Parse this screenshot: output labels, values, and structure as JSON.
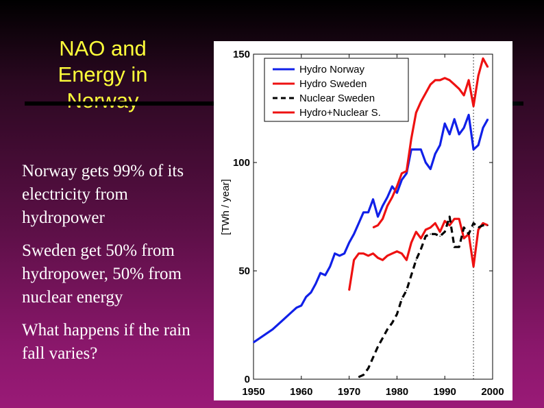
{
  "slide": {
    "title_lines": [
      "NAO and",
      "Energy in",
      "Norway"
    ],
    "bullets": [
      "Norway gets 99% of its electricity from hydropower",
      "Sweden get 50% from hydropower, 50% from nuclear energy",
      "What happens if the rain fall varies?"
    ]
  },
  "chart_data": {
    "type": "line",
    "title": "",
    "xlabel": "",
    "ylabel": "[TWh / year]",
    "xlim": [
      1950,
      2000
    ],
    "ylim": [
      0,
      150
    ],
    "xticks": [
      "1950",
      "1960",
      "1970",
      "1980",
      "1990",
      "2000"
    ],
    "yticks": [
      "0",
      "50",
      "100",
      "150"
    ],
    "reference_line_x": 1996,
    "legend_position": "top-right",
    "colors": {
      "blue": "#1020e8",
      "red": "#ee1111",
      "black": "#000000"
    },
    "series": [
      {
        "name": "Hydro Norway",
        "color": "#1020e8",
        "dash": "solid",
        "x": [
          1950,
          1952,
          1954,
          1956,
          1958,
          1959,
          1960,
          1961,
          1962,
          1963,
          1964,
          1965,
          1966,
          1967,
          1968,
          1969,
          1970,
          1971,
          1972,
          1973,
          1974,
          1975,
          1976,
          1977,
          1978,
          1979,
          1980,
          1981,
          1982,
          1983,
          1984,
          1985,
          1986,
          1987,
          1988,
          1989,
          1990,
          1991,
          1992,
          1993,
          1994,
          1995,
          1996,
          1997,
          1998,
          1999
        ],
        "y": [
          17,
          20,
          23,
          27,
          31,
          33,
          34,
          38,
          40,
          44,
          49,
          48,
          52,
          58,
          57,
          58,
          63,
          67,
          72,
          77,
          77,
          83,
          75,
          80,
          84,
          89,
          86,
          92,
          95,
          106,
          106,
          106,
          100,
          97,
          104,
          108,
          118,
          113,
          120,
          113,
          116,
          122,
          106,
          108,
          116,
          120
        ]
      },
      {
        "name": "Hydro Sweden",
        "color": "#ee1111",
        "dash": "solid",
        "x": [
          1970,
          1971,
          1972,
          1973,
          1974,
          1975,
          1976,
          1977,
          1978,
          1979,
          1980,
          1981,
          1982,
          1983,
          1984,
          1985,
          1986,
          1987,
          1988,
          1989,
          1990,
          1991,
          1992,
          1993,
          1994,
          1995,
          1996,
          1997,
          1998,
          1999
        ],
        "y": [
          41,
          55,
          58,
          58,
          57,
          58,
          56,
          55,
          57,
          58,
          59,
          58,
          55,
          63,
          68,
          65,
          69,
          70,
          72,
          68,
          73,
          71,
          74,
          74,
          65,
          67,
          52,
          69,
          72,
          71
        ]
      },
      {
        "name": "Nuclear Sweden",
        "color": "#000000",
        "dash": "dashed",
        "x": [
          1972,
          1973,
          1974,
          1975,
          1976,
          1977,
          1978,
          1979,
          1980,
          1981,
          1982,
          1983,
          1984,
          1985,
          1986,
          1987,
          1988,
          1989,
          1990,
          1991,
          1992,
          1993,
          1994,
          1995,
          1996,
          1997,
          1998,
          1999
        ],
        "y": [
          1,
          2,
          5,
          10,
          15,
          19,
          23,
          26,
          30,
          37,
          41,
          48,
          55,
          60,
          66,
          67,
          67,
          66,
          68,
          75,
          61,
          61,
          70,
          67,
          72,
          70,
          71,
          71
        ]
      },
      {
        "name": "Hydro+Nuclear S.",
        "color": "#ee1111",
        "dash": "solid",
        "x": [
          1975,
          1976,
          1977,
          1978,
          1979,
          1980,
          1981,
          1982,
          1983,
          1984,
          1985,
          1986,
          1987,
          1988,
          1989,
          1990,
          1991,
          1992,
          1993,
          1994,
          1995,
          1996,
          1997,
          1998,
          1999
        ],
        "y": [
          70,
          71,
          74,
          80,
          84,
          89,
          95,
          96,
          111,
          123,
          128,
          132,
          136,
          138,
          138,
          139,
          138,
          136,
          134,
          131,
          138,
          126,
          140,
          148,
          144
        ]
      }
    ]
  }
}
